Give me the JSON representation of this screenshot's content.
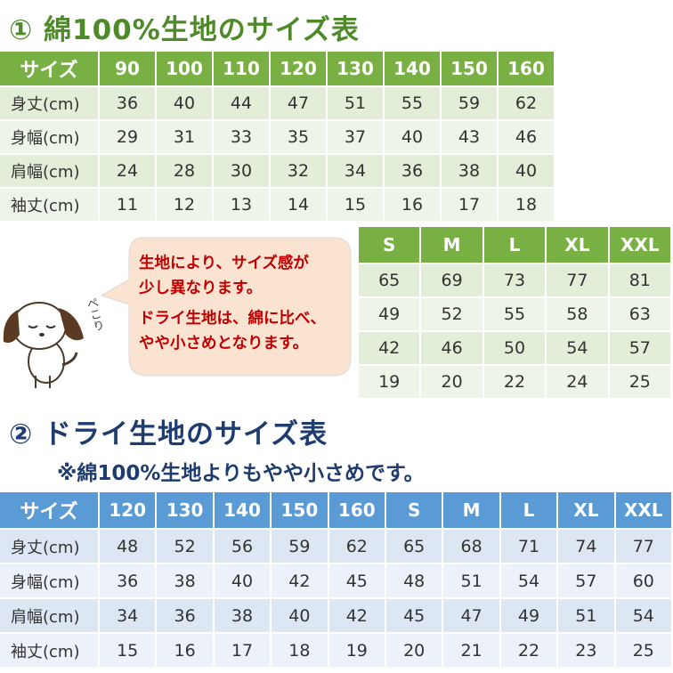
{
  "section1": {
    "title": "① 綿100%生地のサイズ表",
    "table": {
      "header": [
        "サイズ",
        "90",
        "100",
        "110",
        "120",
        "130",
        "140",
        "150",
        "160"
      ],
      "rows": [
        [
          "身丈(cm)",
          "36",
          "40",
          "44",
          "47",
          "51",
          "55",
          "59",
          "62"
        ],
        [
          "身幅(cm)",
          "29",
          "31",
          "33",
          "35",
          "37",
          "40",
          "43",
          "46"
        ],
        [
          "肩幅(cm)",
          "24",
          "28",
          "30",
          "32",
          "34",
          "36",
          "38",
          "40"
        ],
        [
          "袖丈(cm)",
          "11",
          "12",
          "13",
          "14",
          "15",
          "16",
          "17",
          "18"
        ]
      ]
    },
    "table_adult": {
      "header": [
        "S",
        "M",
        "L",
        "XL",
        "XXL"
      ],
      "rows": [
        [
          "65",
          "69",
          "73",
          "77",
          "81"
        ],
        [
          "49",
          "52",
          "55",
          "58",
          "63"
        ],
        [
          "42",
          "46",
          "50",
          "54",
          "57"
        ],
        [
          "19",
          "20",
          "22",
          "24",
          "25"
        ]
      ]
    }
  },
  "note": {
    "lines": [
      "生地により、サイズ感が",
      "少し異なります。",
      "ドライ生地は、綿に比べ、",
      "やや小さめとなります。"
    ],
    "dog_caption": "ぺこり"
  },
  "section2": {
    "title": "② ドライ生地のサイズ表",
    "subtitle": "※綿100%生地よりもやや小さめです。",
    "table": {
      "header": [
        "サイズ",
        "120",
        "130",
        "140",
        "150",
        "160",
        "S",
        "M",
        "L",
        "XL",
        "XXL"
      ],
      "rows": [
        [
          "身丈(cm)",
          "48",
          "52",
          "56",
          "59",
          "62",
          "65",
          "68",
          "71",
          "74",
          "77"
        ],
        [
          "身幅(cm)",
          "36",
          "38",
          "40",
          "42",
          "45",
          "48",
          "51",
          "54",
          "57",
          "60"
        ],
        [
          "肩幅(cm)",
          "34",
          "36",
          "38",
          "40",
          "42",
          "45",
          "47",
          "49",
          "51",
          "54"
        ],
        [
          "袖丈(cm)",
          "15",
          "16",
          "17",
          "18",
          "19",
          "20",
          "21",
          "22",
          "23",
          "25"
        ]
      ]
    }
  }
}
